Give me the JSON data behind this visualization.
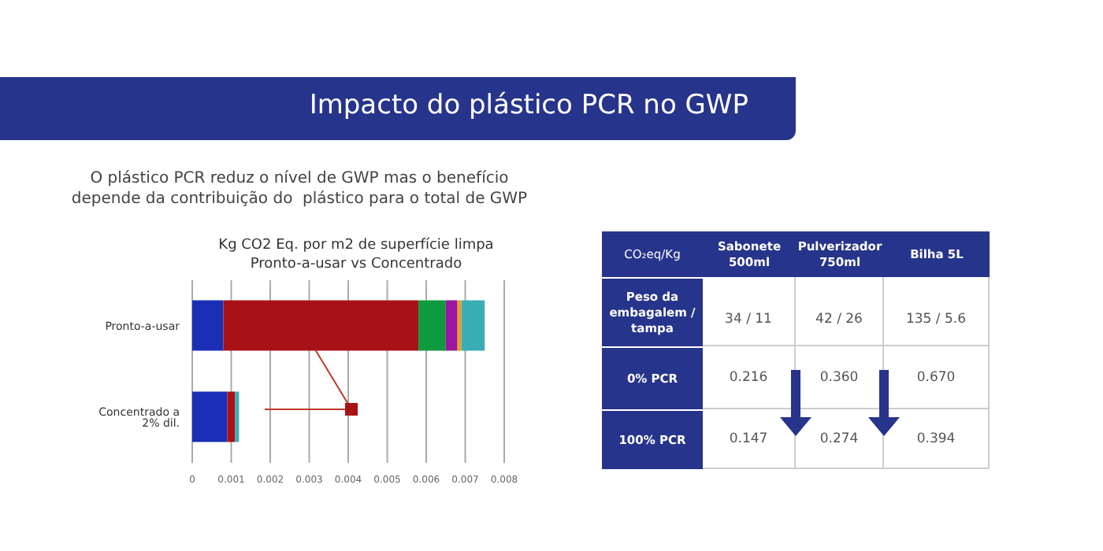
{
  "chart_data": [
    {
      "type": "bar",
      "orientation": "horizontal",
      "stacked": true,
      "title": "Kg CO2 Eq. por m2 de superfície limpa",
      "subtitle": "Pronto-a-usar vs Concentrado",
      "annotations": [
        "Impacto do plástico PCR no GWP",
        "O plástico PCR reduz o nível de GWP mas o benefício\ndepende da contribuição do  plástico para o total de GWP"
      ],
      "categories": [
        "Pronto-a-usar",
        "Concentrado a 2% dil."
      ],
      "series": [
        {
          "color": "#1a2fb5",
          "values": [
            0.0008,
            0.0009
          ]
        },
        {
          "color": "#a81216",
          "values": [
            0.005,
            0.0002
          ]
        },
        {
          "color": "#0e9a3e",
          "values": [
            0.0007,
            0
          ]
        },
        {
          "color": "#9a16a0",
          "values": [
            0.0003,
            0
          ]
        },
        {
          "color": "#f39a1e",
          "values": [
            0.0001,
            0
          ]
        },
        {
          "color": "#3aaeb5",
          "values": [
            0.0006,
            0.0001
          ]
        }
      ],
      "xlim": [
        0,
        0.008
      ],
      "xticks": [
        0,
        0.001,
        0.002,
        0.003,
        0.004,
        0.005,
        0.006,
        0.007,
        0.008
      ],
      "grid": "x",
      "legend": false
    },
    {
      "type": "other",
      "title": "CO₂eq/Kg",
      "categories": [
        "Sabonete 500ml",
        "Pulverizador 750ml",
        "Bilha 5L"
      ],
      "y_categories": [
        "Peso da embagalem / tampa",
        "0% PCR",
        "100% PCR"
      ],
      "cell_labels": [
        [
          "34 / 11",
          "42 / 26",
          "135 / 5.6"
        ],
        [
          "0.216",
          "0.360",
          "0.670"
        ],
        [
          "0.147",
          "0.274",
          "0.394"
        ]
      ]
    }
  ]
}
